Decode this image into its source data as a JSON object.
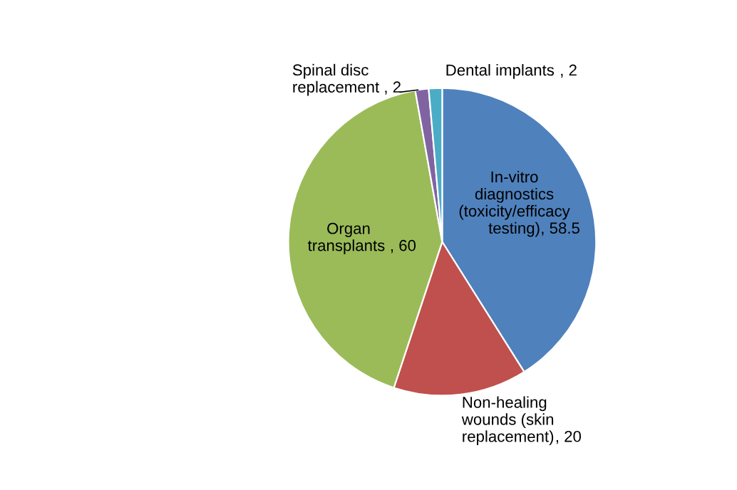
{
  "chart_data": {
    "type": "pie",
    "categories": [
      "In-vitro\ndiagnostics\n(toxicity/efficacy\ntesting)",
      "Non-healing\nwounds (skin\nreplacement)",
      "Organ\ntransplants ",
      "Spinal disc\nreplacement ",
      "Dental implants "
    ],
    "values": [
      58.5,
      20,
      60,
      2,
      2
    ],
    "colors": [
      "#4f81bd",
      "#c0504d",
      "#9bbb59",
      "#8064a2",
      "#4bacc6"
    ],
    "value_labels": [
      ", 58.5",
      ", 20",
      ", 60",
      ", 2",
      ", 2"
    ],
    "legend": false
  }
}
